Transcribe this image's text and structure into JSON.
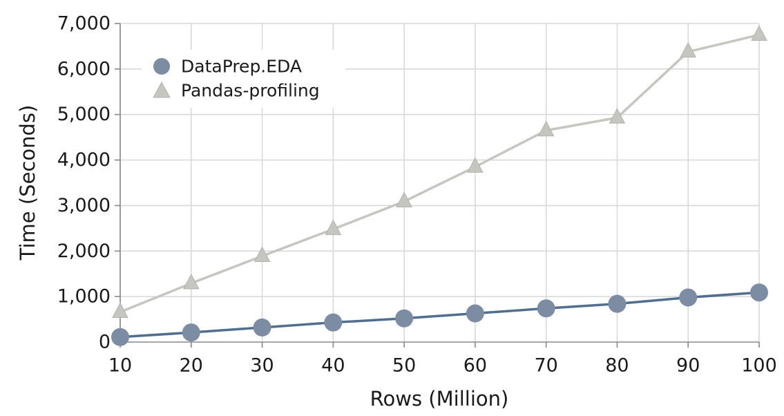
{
  "chart_data": {
    "type": "line",
    "title": "",
    "xlabel": "Rows (Million)",
    "ylabel": "Time (Seconds)",
    "x": [
      10,
      20,
      30,
      40,
      50,
      60,
      70,
      80,
      90,
      100
    ],
    "x_ticks": [
      10,
      20,
      30,
      40,
      50,
      60,
      70,
      80,
      90,
      100
    ],
    "x_tick_labels": [
      "10",
      "20",
      "30",
      "40",
      "50",
      "60",
      "70",
      "80",
      "90",
      "100"
    ],
    "xlim": [
      10,
      100
    ],
    "y_ticks": [
      0,
      1000,
      2000,
      3000,
      4000,
      5000,
      6000,
      7000
    ],
    "y_tick_labels": [
      "0",
      "1,000",
      "2,000",
      "3,000",
      "4,000",
      "5,000",
      "6,000",
      "7,000"
    ],
    "ylim": [
      0,
      7000
    ],
    "grid": true,
    "legend_position": "top-left",
    "series": [
      {
        "name": "DataPrep.EDA",
        "marker": "circle",
        "line_color": "#4e6e93",
        "marker_color": "#7b8ca3",
        "values": [
          110,
          210,
          320,
          430,
          520,
          630,
          740,
          840,
          980,
          1090
        ]
      },
      {
        "name": "Pandas-profiling",
        "marker": "triangle",
        "line_color": "#c6c6c0",
        "marker_color": "#c6c6c0",
        "values": [
          660,
          1290,
          1890,
          2480,
          3090,
          3850,
          4650,
          4930,
          6380,
          6750
        ]
      }
    ]
  }
}
